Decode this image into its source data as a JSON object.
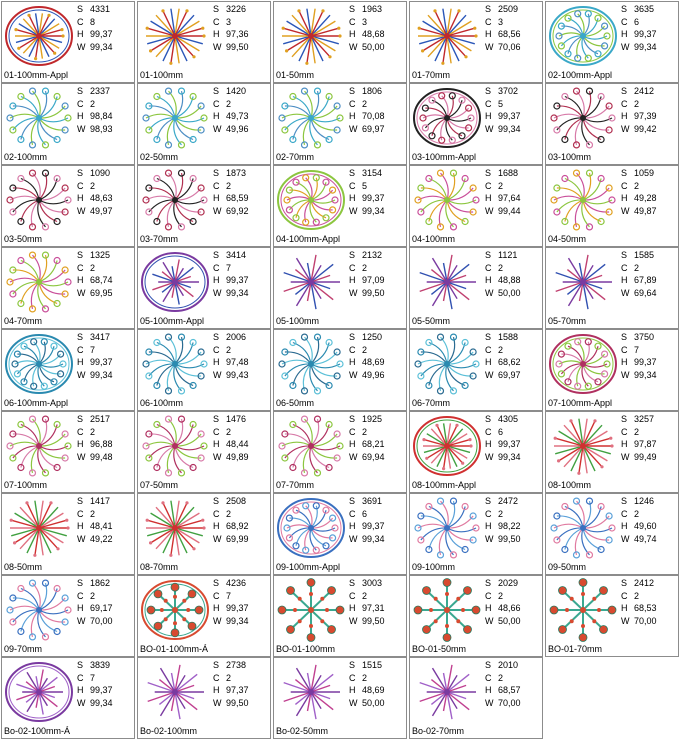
{
  "labels": {
    "stitches": "S",
    "colors": "C",
    "height": "H",
    "width": "W"
  },
  "designs": [
    {
      "name": "01-100mm-Appl",
      "s": "4331",
      "c": "8",
      "h": "99,37",
      "w": "99,34",
      "style": "burst",
      "frame": true,
      "colors": [
        "#c0282c",
        "#2a56b8",
        "#e0a020"
      ]
    },
    {
      "name": "01-100mm",
      "s": "3226",
      "c": "3",
      "h": "97,36",
      "w": "99,50",
      "style": "burst",
      "frame": false,
      "colors": [
        "#c0282c",
        "#2a56b8",
        "#e0a020"
      ]
    },
    {
      "name": "01-50mm",
      "s": "1963",
      "c": "3",
      "h": "48,68",
      "w": "50,00",
      "style": "burst",
      "frame": false,
      "colors": [
        "#c0282c",
        "#2a56b8",
        "#e0a020"
      ]
    },
    {
      "name": "01-70mm",
      "s": "2509",
      "c": "3",
      "h": "68,56",
      "w": "70,06",
      "style": "burst",
      "frame": false,
      "colors": [
        "#c0282c",
        "#2a56b8",
        "#e0a020"
      ]
    },
    {
      "name": "02-100mm-Appl",
      "s": "3635",
      "c": "6",
      "h": "99,37",
      "w": "99,34",
      "style": "swirl",
      "frame": true,
      "colors": [
        "#3aa8c8",
        "#8cc63f",
        "#4d8ec4"
      ]
    },
    {
      "name": "02-100mm",
      "s": "2337",
      "c": "2",
      "h": "98,84",
      "w": "98,93",
      "style": "swirl",
      "frame": false,
      "colors": [
        "#3aa8c8",
        "#8cc63f",
        "#4d8ec4"
      ]
    },
    {
      "name": "02-50mm",
      "s": "1420",
      "c": "2",
      "h": "49,73",
      "w": "49,96",
      "style": "swirl",
      "frame": false,
      "colors": [
        "#3aa8c8",
        "#8cc63f",
        "#4d8ec4"
      ]
    },
    {
      "name": "02-70mm",
      "s": "1806",
      "c": "2",
      "h": "70,08",
      "w": "69,97",
      "style": "swirl",
      "frame": false,
      "colors": [
        "#3aa8c8",
        "#8cc63f",
        "#4d8ec4"
      ]
    },
    {
      "name": "03-100mm-Appl",
      "s": "3702",
      "c": "5",
      "h": "99,37",
      "w": "99,34",
      "style": "swirl",
      "frame": true,
      "colors": [
        "#222222",
        "#d77aa8",
        "#b03050"
      ]
    },
    {
      "name": "03-100mm",
      "s": "2412",
      "c": "2",
      "h": "97,39",
      "w": "99,42",
      "style": "swirl",
      "frame": false,
      "colors": [
        "#222222",
        "#d77aa8",
        "#b03050"
      ]
    },
    {
      "name": "03-50mm",
      "s": "1090",
      "c": "2",
      "h": "48,63",
      "w": "49,97",
      "style": "swirl",
      "frame": false,
      "colors": [
        "#222222",
        "#d77aa8",
        "#b03050"
      ]
    },
    {
      "name": "03-70mm",
      "s": "1873",
      "c": "2",
      "h": "68,59",
      "w": "69,92",
      "style": "swirl",
      "frame": false,
      "colors": [
        "#222222",
        "#d77aa8",
        "#b03050"
      ]
    },
    {
      "name": "04-100mm-Appl",
      "s": "3154",
      "c": "5",
      "h": "99,37",
      "w": "99,34",
      "style": "swirl",
      "frame": true,
      "colors": [
        "#8cc63f",
        "#c94f9a",
        "#e0a020"
      ]
    },
    {
      "name": "04-100mm",
      "s": "1688",
      "c": "2",
      "h": "97,64",
      "w": "99,44",
      "style": "swirl",
      "frame": false,
      "colors": [
        "#8cc63f",
        "#c94f9a",
        "#e0a020"
      ]
    },
    {
      "name": "04-50mm",
      "s": "1059",
      "c": "2",
      "h": "49,28",
      "w": "49,87",
      "style": "swirl",
      "frame": false,
      "colors": [
        "#8cc63f",
        "#c94f9a",
        "#e0a020"
      ]
    },
    {
      "name": "04-70mm",
      "s": "1325",
      "c": "2",
      "h": "68,74",
      "w": "69,95",
      "style": "swirl",
      "frame": false,
      "colors": [
        "#8cc63f",
        "#c94f9a",
        "#e0a020"
      ]
    },
    {
      "name": "05-100mm-Appl",
      "s": "3414",
      "c": "7",
      "h": "99,37",
      "w": "99,34",
      "style": "star",
      "frame": true,
      "colors": [
        "#7a3aa0",
        "#3050b0",
        "#c04070"
      ]
    },
    {
      "name": "05-100mm",
      "s": "2132",
      "c": "2",
      "h": "97,09",
      "w": "99,50",
      "style": "star",
      "frame": false,
      "colors": [
        "#7a3aa0",
        "#3050b0",
        "#c04070"
      ]
    },
    {
      "name": "05-50mm",
      "s": "1121",
      "c": "2",
      "h": "48,88",
      "w": "50,00",
      "style": "star",
      "frame": false,
      "colors": [
        "#7a3aa0",
        "#3050b0",
        "#c04070"
      ]
    },
    {
      "name": "05-70mm",
      "s": "1585",
      "c": "2",
      "h": "67,89",
      "w": "69,64",
      "style": "star",
      "frame": false,
      "colors": [
        "#7a3aa0",
        "#3050b0",
        "#c04070"
      ]
    },
    {
      "name": "06-100mm-Appl",
      "s": "3417",
      "c": "7",
      "h": "99,37",
      "w": "99,34",
      "style": "swirl",
      "frame": true,
      "colors": [
        "#2a8ab0",
        "#5cc0d8",
        "#2a6a90"
      ]
    },
    {
      "name": "06-100mm",
      "s": "2006",
      "c": "2",
      "h": "97,48",
      "w": "99,43",
      "style": "swirl",
      "frame": false,
      "colors": [
        "#2a8ab0",
        "#5cc0d8",
        "#2a6a90"
      ]
    },
    {
      "name": "06-50mm",
      "s": "1250",
      "c": "2",
      "h": "48,69",
      "w": "49,96",
      "style": "swirl",
      "frame": false,
      "colors": [
        "#2a8ab0",
        "#5cc0d8",
        "#2a6a90"
      ]
    },
    {
      "name": "06-70mm",
      "s": "1588",
      "c": "2",
      "h": "68,62",
      "w": "69,97",
      "style": "swirl",
      "frame": false,
      "colors": [
        "#2a8ab0",
        "#5cc0d8",
        "#2a6a90"
      ]
    },
    {
      "name": "07-100mm-Appl",
      "s": "3750",
      "c": "7",
      "h": "99,37",
      "w": "99,34",
      "style": "swirl",
      "frame": true,
      "colors": [
        "#b03060",
        "#8cc63f",
        "#d77aa8"
      ]
    },
    {
      "name": "07-100mm",
      "s": "2517",
      "c": "2",
      "h": "96,88",
      "w": "99,48",
      "style": "swirl",
      "frame": false,
      "colors": [
        "#b03060",
        "#8cc63f",
        "#d77aa8"
      ]
    },
    {
      "name": "07-50mm",
      "s": "1476",
      "c": "2",
      "h": "48,44",
      "w": "49,89",
      "style": "swirl",
      "frame": false,
      "colors": [
        "#b03060",
        "#8cc63f",
        "#d77aa8"
      ]
    },
    {
      "name": "07-70mm",
      "s": "1925",
      "c": "2",
      "h": "68,21",
      "w": "69,94",
      "style": "swirl",
      "frame": false,
      "colors": [
        "#b03060",
        "#8cc63f",
        "#d77aa8"
      ]
    },
    {
      "name": "08-100mm-Appl",
      "s": "4305",
      "c": "6",
      "h": "99,37",
      "w": "99,34",
      "style": "burst",
      "frame": true,
      "colors": [
        "#d03030",
        "#40a040",
        "#e07080"
      ]
    },
    {
      "name": "08-100mm",
      "s": "3257",
      "c": "2",
      "h": "97,87",
      "w": "99,49",
      "style": "burst",
      "frame": false,
      "colors": [
        "#d03030",
        "#40a040",
        "#e07080"
      ]
    },
    {
      "name": "08-50mm",
      "s": "1417",
      "c": "2",
      "h": "48,41",
      "w": "49,22",
      "style": "burst",
      "frame": false,
      "colors": [
        "#d03030",
        "#40a040",
        "#e07080"
      ]
    },
    {
      "name": "08-70mm",
      "s": "2508",
      "c": "2",
      "h": "68,92",
      "w": "69,99",
      "style": "burst",
      "frame": false,
      "colors": [
        "#d03030",
        "#40a040",
        "#e07080"
      ]
    },
    {
      "name": "09-100mm-Appl",
      "s": "3691",
      "c": "6",
      "h": "99,37",
      "w": "99,34",
      "style": "swirl",
      "frame": true,
      "colors": [
        "#3a70c0",
        "#e07aa0",
        "#5aa0d8"
      ]
    },
    {
      "name": "09-100mm",
      "s": "2472",
      "c": "2",
      "h": "98,22",
      "w": "99,50",
      "style": "swirl",
      "frame": false,
      "colors": [
        "#3a70c0",
        "#e07aa0",
        "#5aa0d8"
      ]
    },
    {
      "name": "09-50mm",
      "s": "1246",
      "c": "2",
      "h": "49,60",
      "w": "49,74",
      "style": "swirl",
      "frame": false,
      "colors": [
        "#3a70c0",
        "#e07aa0",
        "#5aa0d8"
      ]
    },
    {
      "name": "09-70mm",
      "s": "1862",
      "c": "2",
      "h": "69,17",
      "w": "70,00",
      "style": "swirl",
      "frame": false,
      "colors": [
        "#3a70c0",
        "#e07aa0",
        "#5aa0d8"
      ]
    },
    {
      "name": "BO-01-100mm-Á",
      "s": "4236",
      "c": "7",
      "h": "99,37",
      "w": "99,34",
      "style": "flake",
      "frame": true,
      "colors": [
        "#d84a30",
        "#3aa890",
        "#2a7a60"
      ]
    },
    {
      "name": "BO-01-100mm",
      "s": "3003",
      "c": "2",
      "h": "97,31",
      "w": "99,50",
      "style": "flake",
      "frame": false,
      "colors": [
        "#d84a30",
        "#3aa890",
        "#2a7a60"
      ]
    },
    {
      "name": "BO-01-50mm",
      "s": "2029",
      "c": "2",
      "h": "48,66",
      "w": "50,00",
      "style": "flake",
      "frame": false,
      "colors": [
        "#d84a30",
        "#3aa890",
        "#2a7a60"
      ]
    },
    {
      "name": "BO-01-70mm",
      "s": "2412",
      "c": "2",
      "h": "68,53",
      "w": "70,00",
      "style": "flake",
      "frame": false,
      "colors": [
        "#d84a30",
        "#3aa890",
        "#2a7a60"
      ]
    },
    {
      "name": "Bo-02-100mm-Á",
      "s": "3839",
      "c": "7",
      "h": "99,37",
      "w": "99,34",
      "style": "star",
      "frame": true,
      "colors": [
        "#7a3aa0",
        "#a060c8",
        "#c04090"
      ]
    },
    {
      "name": "Bo-02-100mm",
      "s": "2738",
      "c": "2",
      "h": "97,37",
      "w": "99,50",
      "style": "star",
      "frame": false,
      "colors": [
        "#7a3aa0",
        "#a060c8",
        "#c04090"
      ]
    },
    {
      "name": "Bo-02-50mm",
      "s": "1515",
      "c": "2",
      "h": "48,69",
      "w": "50,00",
      "style": "star",
      "frame": false,
      "colors": [
        "#7a3aa0",
        "#a060c8",
        "#c04090"
      ]
    },
    {
      "name": "Bo-02-70mm",
      "s": "2010",
      "c": "2",
      "h": "68,57",
      "w": "70,00",
      "style": "star",
      "frame": false,
      "colors": [
        "#7a3aa0",
        "#a060c8",
        "#c04090"
      ]
    }
  ]
}
